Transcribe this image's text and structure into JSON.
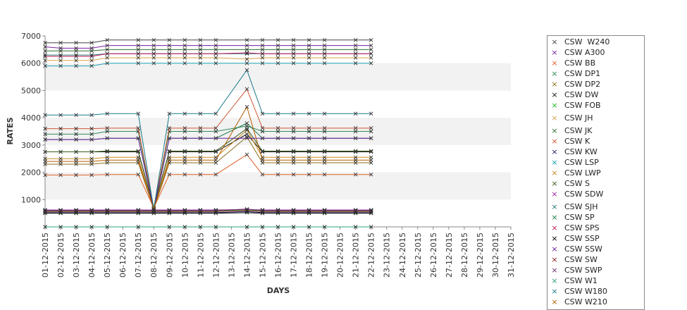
{
  "chart_data": {
    "type": "line",
    "title": "",
    "xlabel": "DAYS",
    "ylabel": "RATES",
    "ylim": [
      0,
      7000
    ],
    "yticks": [
      1000,
      2000,
      3000,
      4000,
      5000,
      6000,
      7000
    ],
    "grid": "alternating horizontal bands",
    "legend_position": "right",
    "marker": "x",
    "categories": [
      "01-12-2015",
      "02-12-2015",
      "03-12-2015",
      "04-12-2015",
      "05-12-2015",
      "06-12-2015",
      "07-12-2015",
      "08-12-2015",
      "09-12-2015",
      "10-12-2015",
      "11-12-2015",
      "12-12-2015",
      "13-12-2015",
      "14-12-2015",
      "15-12-2015",
      "16-12-2015",
      "17-12-2015",
      "18-12-2015",
      "19-12-2015",
      "20-12-2015",
      "21-12-2015",
      "22-12-2015",
      "23-12-2015",
      "24-12-2015",
      "25-12-2015",
      "26-12-2015",
      "27-12-2015",
      "28-12-2015",
      "29-12-2015",
      "30-12-2015",
      "31-12-2015"
    ],
    "series": [
      {
        "name": "CSW  W240",
        "color": "#444444",
        "values": [
          6750,
          6750,
          6750,
          6750,
          6850,
          null,
          6850,
          6850,
          6850,
          6850,
          6850,
          6850,
          null,
          6850,
          6850,
          6850,
          6850,
          6850,
          6850,
          null,
          6850,
          6850,
          null,
          null,
          null,
          null,
          null,
          null,
          null,
          null,
          null
        ]
      },
      {
        "name": "CSW A300",
        "color": "#7a1fa2",
        "values": [
          6600,
          6550,
          6550,
          6550,
          6650,
          null,
          6650,
          6650,
          6650,
          6650,
          6650,
          6650,
          null,
          6650,
          6650,
          6650,
          6650,
          6650,
          6650,
          null,
          6650,
          6650,
          null,
          null,
          null,
          null,
          null,
          null,
          null,
          null,
          null
        ]
      },
      {
        "name": "CSW BB",
        "color": "#e0602a",
        "values": [
          1900,
          1900,
          1900,
          1900,
          1920,
          null,
          1920,
          700,
          1920,
          1920,
          1920,
          1920,
          null,
          2650,
          1920,
          1920,
          1920,
          1920,
          1920,
          null,
          1920,
          1920,
          null,
          null,
          null,
          null,
          null,
          null,
          null,
          null,
          null
        ]
      },
      {
        "name": "CSW DP1",
        "color": "#2e8b57",
        "values": [
          3400,
          3400,
          3400,
          3400,
          3500,
          null,
          3500,
          650,
          3500,
          3500,
          3500,
          3500,
          null,
          3700,
          3500,
          3500,
          3500,
          3500,
          3500,
          null,
          3500,
          3500,
          null,
          null,
          null,
          null,
          null,
          null,
          null,
          null,
          null
        ]
      },
      {
        "name": "CSW DP2",
        "color": "#8b6f1a",
        "values": [
          2300,
          2300,
          2300,
          2300,
          2350,
          null,
          2350,
          650,
          2350,
          2350,
          2350,
          2350,
          null,
          3300,
          2350,
          2350,
          2350,
          2350,
          2350,
          null,
          2350,
          2350,
          null,
          null,
          null,
          null,
          null,
          null,
          null,
          null,
          null
        ]
      },
      {
        "name": "CSW DW",
        "color": "#111111",
        "values": [
          2750,
          2750,
          2750,
          2750,
          2750,
          null,
          2750,
          700,
          2750,
          2750,
          2750,
          2750,
          null,
          3400,
          2750,
          2750,
          2750,
          2750,
          2750,
          null,
          2750,
          2750,
          null,
          null,
          null,
          null,
          null,
          null,
          null,
          null,
          null
        ]
      },
      {
        "name": "CSW FOB",
        "color": "#22bb22",
        "values": [
          580,
          580,
          580,
          580,
          580,
          null,
          580,
          580,
          580,
          580,
          580,
          580,
          null,
          620,
          580,
          580,
          580,
          580,
          580,
          null,
          580,
          580,
          null,
          null,
          null,
          null,
          null,
          null,
          null,
          null,
          null
        ]
      },
      {
        "name": "CSW JH",
        "color": "#d4a24a",
        "values": [
          6100,
          6100,
          6100,
          6100,
          6200,
          null,
          6200,
          6200,
          6200,
          6200,
          6200,
          6200,
          null,
          6150,
          6200,
          6200,
          6200,
          6200,
          6200,
          null,
          6200,
          6200,
          null,
          null,
          null,
          null,
          null,
          null,
          null,
          null,
          null
        ]
      },
      {
        "name": "CSW JK",
        "color": "#2f6f2f",
        "values": [
          6450,
          6450,
          6450,
          6450,
          6500,
          null,
          6500,
          6500,
          6500,
          6500,
          6500,
          6500,
          null,
          6500,
          6500,
          6500,
          6500,
          6500,
          6500,
          null,
          6500,
          6500,
          null,
          null,
          null,
          null,
          null,
          null,
          null,
          null,
          null
        ]
      },
      {
        "name": "CSW K",
        "color": "#cc5533",
        "values": [
          3600,
          3600,
          3600,
          3600,
          3620,
          null,
          3620,
          700,
          3620,
          3620,
          3620,
          3620,
          null,
          5050,
          3620,
          3620,
          3620,
          3620,
          3620,
          null,
          3620,
          3620,
          null,
          null,
          null,
          null,
          null,
          null,
          null,
          null,
          null
        ]
      },
      {
        "name": "CSW KW",
        "color": "#1a1a66",
        "values": [
          520,
          520,
          520,
          520,
          520,
          null,
          520,
          520,
          520,
          520,
          520,
          520,
          null,
          560,
          520,
          520,
          520,
          520,
          520,
          null,
          520,
          520,
          null,
          null,
          null,
          null,
          null,
          null,
          null,
          null,
          null
        ]
      },
      {
        "name": "CSW LSP",
        "color": "#1a9fb0",
        "values": [
          5900,
          5900,
          5900,
          5900,
          6000,
          null,
          6000,
          6000,
          6000,
          6000,
          6000,
          6000,
          null,
          6000,
          6000,
          6000,
          6000,
          6000,
          6000,
          null,
          6000,
          6000,
          null,
          null,
          null,
          null,
          null,
          null,
          null,
          null,
          null
        ]
      },
      {
        "name": "CSW LWP",
        "color": "#c98b1f",
        "values": [
          2500,
          2500,
          2500,
          2500,
          2550,
          null,
          2550,
          650,
          2550,
          2550,
          2550,
          2550,
          null,
          3550,
          2550,
          2550,
          2550,
          2550,
          2550,
          null,
          2550,
          2550,
          null,
          null,
          null,
          null,
          null,
          null,
          null,
          null,
          null
        ]
      },
      {
        "name": "CSW S",
        "color": "#3a5a1a",
        "values": [
          2750,
          2750,
          2750,
          2750,
          2780,
          null,
          2780,
          700,
          2780,
          2780,
          2780,
          2780,
          null,
          3600,
          2780,
          2780,
          2780,
          2780,
          2780,
          null,
          2780,
          2780,
          null,
          null,
          null,
          null,
          null,
          null,
          null,
          null,
          null
        ]
      },
      {
        "name": "CSW SDW",
        "color": "#aa22aa",
        "values": [
          620,
          620,
          620,
          620,
          620,
          null,
          620,
          620,
          620,
          620,
          620,
          620,
          null,
          640,
          620,
          620,
          620,
          620,
          620,
          null,
          620,
          620,
          null,
          null,
          null,
          null,
          null,
          null,
          null,
          null,
          null
        ]
      },
      {
        "name": "CSW SJH",
        "color": "#2a7a7a",
        "values": [
          6300,
          6300,
          6300,
          6300,
          6350,
          null,
          6350,
          6350,
          6350,
          6350,
          6350,
          6350,
          null,
          6350,
          6350,
          6350,
          6350,
          6350,
          6350,
          null,
          6350,
          6350,
          null,
          null,
          null,
          null,
          null,
          null,
          null,
          null,
          null
        ]
      },
      {
        "name": "CSW SP",
        "color": "#1f7a4a",
        "values": [
          3200,
          3200,
          3200,
          3200,
          3250,
          null,
          3250,
          700,
          3250,
          3250,
          3250,
          3250,
          null,
          3800,
          3250,
          3250,
          3250,
          3250,
          3250,
          null,
          3250,
          3250,
          null,
          null,
          null,
          null,
          null,
          null,
          null,
          null,
          null
        ]
      },
      {
        "name": "CSW SPS",
        "color": "#c2185b",
        "values": [
          6250,
          6250,
          6250,
          6250,
          6350,
          null,
          6350,
          6350,
          6350,
          6350,
          6350,
          6350,
          null,
          6380,
          6350,
          6350,
          6350,
          6350,
          6350,
          null,
          6350,
          6350,
          null,
          null,
          null,
          null,
          null,
          null,
          null,
          null,
          null
        ]
      },
      {
        "name": "CSW SSP",
        "color": "#000000",
        "values": [
          500,
          500,
          500,
          500,
          500,
          null,
          500,
          500,
          500,
          500,
          500,
          500,
          null,
          520,
          500,
          500,
          500,
          500,
          500,
          null,
          500,
          500,
          null,
          null,
          null,
          null,
          null,
          null,
          null,
          null,
          null
        ]
      },
      {
        "name": "CSW SSW",
        "color": "#6a1b9a",
        "values": [
          3200,
          3200,
          3200,
          3200,
          3250,
          null,
          3250,
          650,
          3250,
          3250,
          3250,
          3250,
          null,
          3250,
          3250,
          3250,
          3250,
          3250,
          3250,
          null,
          3250,
          3250,
          null,
          null,
          null,
          null,
          null,
          null,
          null,
          null,
          null
        ]
      },
      {
        "name": "CSW SW",
        "color": "#8b1a1a",
        "values": [
          560,
          560,
          560,
          560,
          560,
          null,
          560,
          560,
          560,
          560,
          560,
          560,
          null,
          600,
          560,
          560,
          560,
          560,
          560,
          null,
          560,
          560,
          null,
          null,
          null,
          null,
          null,
          null,
          null,
          null,
          null
        ]
      },
      {
        "name": "CSW SWP",
        "color": "#6b2a6b",
        "values": [
          600,
          600,
          600,
          600,
          600,
          null,
          600,
          600,
          600,
          600,
          600,
          600,
          null,
          650,
          600,
          600,
          600,
          600,
          600,
          null,
          600,
          600,
          null,
          null,
          null,
          null,
          null,
          null,
          null,
          null,
          null
        ]
      },
      {
        "name": "CSW W1",
        "color": "#2aa070",
        "values": [
          0,
          0,
          0,
          0,
          0,
          null,
          0,
          null,
          0,
          0,
          0,
          0,
          null,
          0,
          0,
          0,
          0,
          0,
          0,
          null,
          0,
          0,
          null,
          null,
          null,
          null,
          null,
          null,
          null,
          null,
          null
        ]
      },
      {
        "name": "CSW W180",
        "color": "#1a7a8a",
        "values": [
          4100,
          4100,
          4100,
          4100,
          4150,
          null,
          4150,
          650,
          4150,
          4150,
          4150,
          4150,
          null,
          5750,
          4150,
          4150,
          4150,
          4150,
          4150,
          null,
          4150,
          4150,
          null,
          null,
          null,
          null,
          null,
          null,
          null,
          null,
          null
        ]
      },
      {
        "name": "CSW W210",
        "color": "#b35c00",
        "values": [
          2400,
          2400,
          2400,
          2400,
          2450,
          null,
          2450,
          650,
          2450,
          2450,
          2450,
          2450,
          null,
          4400,
          2450,
          2450,
          2450,
          2450,
          2450,
          null,
          2450,
          2450,
          null,
          null,
          null,
          null,
          null,
          null,
          null,
          null,
          null
        ]
      }
    ]
  }
}
